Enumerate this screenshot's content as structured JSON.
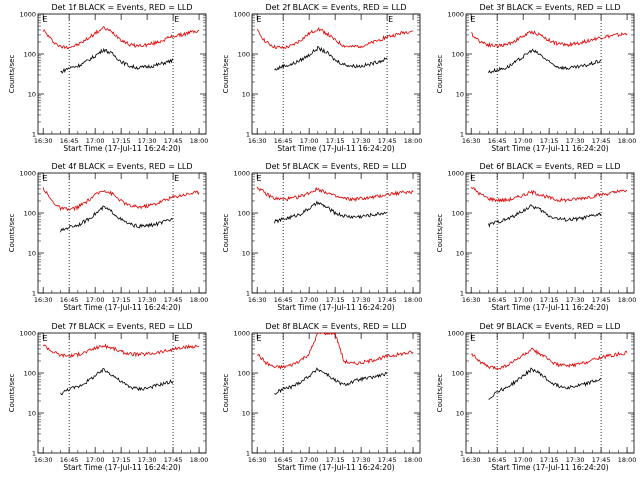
{
  "chart_data": {
    "type": "line",
    "y_scale": "log",
    "ylim": [
      1,
      1000
    ],
    "y_ticks": [
      "1",
      "10",
      "100",
      "1000"
    ],
    "x_ticks": [
      "16:30",
      "16:45",
      "17:00",
      "17:15",
      "17:30",
      "17:45",
      "18:00"
    ],
    "grid": false,
    "colors": {
      "events": "#000000",
      "lld": "#e00000"
    },
    "panels": [
      {
        "title": "Det 1f  BLACK = Events, RED = LLD",
        "xlabel": "Start Time (17-Jul-11 16:24:20)",
        "ylabel": "Counts/sec",
        "markers": [
          "E",
          "E"
        ],
        "series": [
          {
            "x": [
              "16:30",
              "16:35",
              "16:40",
              "16:45",
              "16:50",
              "16:55",
              "17:00",
              "17:05",
              "17:10",
              "17:15",
              "17:20",
              "17:25",
              "17:30",
              "17:35",
              "17:40",
              "17:45",
              "17:50",
              "17:55",
              "18:00"
            ],
            "values": [
              400,
              220,
              150,
              150,
              170,
              230,
              330,
              450,
              350,
              230,
              170,
              160,
              170,
              190,
              230,
              280,
              300,
              350,
              380
            ]
          },
          {
            "x": [
              "16:40",
              "16:45",
              "16:50",
              "16:55",
              "17:00",
              "17:05",
              "17:10",
              "17:15",
              "17:20",
              "17:25",
              "17:30",
              "17:35",
              "17:40",
              "17:45"
            ],
            "values": [
              35,
              45,
              50,
              65,
              90,
              130,
              100,
              65,
              50,
              45,
              48,
              52,
              60,
              70
            ]
          }
        ]
      },
      {
        "title": "Det 2f  BLACK = Events, RED = LLD",
        "xlabel": "Start Time (17-Jul-11 16:24:20)",
        "ylabel": "Counts/sec",
        "markers": [
          "E",
          "E"
        ],
        "series": [
          {
            "x": [
              "16:30",
              "16:35",
              "16:40",
              "16:45",
              "16:50",
              "16:55",
              "17:00",
              "17:05",
              "17:10",
              "17:15",
              "17:20",
              "17:25",
              "17:30",
              "17:35",
              "17:40",
              "17:45",
              "17:50",
              "17:55",
              "18:00"
            ],
            "values": [
              380,
              200,
              150,
              140,
              160,
              220,
              320,
              430,
              330,
              220,
              160,
              150,
              160,
              180,
              220,
              270,
              300,
              350,
              380
            ]
          },
          {
            "x": [
              "16:40",
              "16:45",
              "16:50",
              "16:55",
              "17:00",
              "17:05",
              "17:10",
              "17:15",
              "17:20",
              "17:25",
              "17:30",
              "17:35",
              "17:40",
              "17:45"
            ],
            "values": [
              40,
              50,
              55,
              70,
              95,
              140,
              110,
              70,
              55,
              50,
              50,
              55,
              65,
              75
            ]
          }
        ]
      },
      {
        "title": "Det 3f  BLACK = Events, RED = LLD",
        "xlabel": "Start Time (17-Jul-11 16:24:20)",
        "ylabel": "Counts/sec",
        "markers": [
          "E"
        ],
        "series": [
          {
            "x": [
              "16:30",
              "16:35",
              "16:40",
              "16:45",
              "16:50",
              "16:55",
              "17:00",
              "17:05",
              "17:10",
              "17:15",
              "17:20",
              "17:25",
              "17:30",
              "17:35",
              "17:40",
              "17:45",
              "17:50",
              "17:55",
              "18:00"
            ],
            "values": [
              320,
              210,
              170,
              160,
              170,
              210,
              280,
              360,
              300,
              220,
              180,
              170,
              180,
              200,
              230,
              260,
              280,
              300,
              320
            ]
          },
          {
            "x": [
              "16:40",
              "16:45",
              "16:50",
              "16:55",
              "17:00",
              "17:05",
              "17:10",
              "17:15",
              "17:20",
              "17:25",
              "17:30",
              "17:35",
              "17:40",
              "17:45"
            ],
            "values": [
              35,
              40,
              45,
              60,
              85,
              125,
              95,
              62,
              48,
              44,
              46,
              50,
              58,
              68
            ]
          }
        ]
      },
      {
        "title": "Det 4f  BLACK = Events, RED = LLD",
        "xlabel": "Start Time (17-Jul-11 16:24:20)",
        "ylabel": "Counts/sec",
        "markers": [
          "E",
          "E"
        ],
        "series": [
          {
            "x": [
              "16:30",
              "16:35",
              "16:40",
              "16:45",
              "16:50",
              "16:55",
              "17:00",
              "17:05",
              "17:10",
              "17:15",
              "17:20",
              "17:25",
              "17:30",
              "17:35",
              "17:40",
              "17:45",
              "17:50",
              "17:55",
              "18:00"
            ],
            "values": [
              420,
              200,
              130,
              120,
              140,
              190,
              280,
              380,
              300,
              200,
              150,
              140,
              150,
              170,
              210,
              250,
              280,
              310,
              330
            ]
          },
          {
            "x": [
              "16:40",
              "16:45",
              "16:50",
              "16:55",
              "17:00",
              "17:05",
              "17:10",
              "17:15",
              "17:20",
              "17:25",
              "17:30",
              "17:35",
              "17:40",
              "17:45"
            ],
            "values": [
              35,
              45,
              50,
              65,
              95,
              140,
              105,
              68,
              52,
              46,
              48,
              52,
              60,
              72
            ]
          }
        ]
      },
      {
        "title": "Det 5f  BLACK = Events, RED = LLD",
        "xlabel": "Start Time (17-Jul-11 16:24:20)",
        "ylabel": "Counts/sec",
        "markers": [
          "E"
        ],
        "series": [
          {
            "x": [
              "16:30",
              "16:35",
              "16:40",
              "16:45",
              "16:50",
              "16:55",
              "17:00",
              "17:05",
              "17:10",
              "17:15",
              "17:20",
              "17:25",
              "17:30",
              "17:35",
              "17:40",
              "17:45",
              "17:50",
              "17:55",
              "18:00"
            ],
            "values": [
              450,
              300,
              230,
              220,
              230,
              260,
              320,
              400,
              330,
              260,
              230,
              220,
              230,
              240,
              260,
              290,
              310,
              330,
              340
            ]
          },
          {
            "x": [
              "16:40",
              "16:45",
              "16:50",
              "16:55",
              "17:00",
              "17:05",
              "17:10",
              "17:15",
              "17:20",
              "17:25",
              "17:30",
              "17:35",
              "17:40",
              "17:45"
            ],
            "values": [
              60,
              70,
              80,
              95,
              130,
              180,
              140,
              100,
              85,
              80,
              82,
              88,
              95,
              105
            ]
          }
        ]
      },
      {
        "title": "Det 6f  BLACK = Events, RED = LLD",
        "xlabel": "Start Time (17-Jul-11 16:24:20)",
        "ylabel": "Counts/sec",
        "markers": [
          "E"
        ],
        "series": [
          {
            "x": [
              "16:30",
              "16:35",
              "16:40",
              "16:45",
              "16:50",
              "16:55",
              "17:00",
              "17:05",
              "17:10",
              "17:15",
              "17:20",
              "17:25",
              "17:30",
              "17:35",
              "17:40",
              "17:45",
              "17:50",
              "17:55",
              "18:00"
            ],
            "values": [
              450,
              300,
              230,
              210,
              210,
              230,
              280,
              330,
              290,
              240,
              210,
              210,
              220,
              240,
              260,
              290,
              310,
              340,
              360
            ]
          },
          {
            "x": [
              "16:40",
              "16:45",
              "16:50",
              "16:55",
              "17:00",
              "17:05",
              "17:10",
              "17:15",
              "17:20",
              "17:25",
              "17:30",
              "17:35",
              "17:40",
              "17:45"
            ],
            "values": [
              50,
              60,
              68,
              85,
              115,
              150,
              120,
              85,
              72,
              68,
              70,
              75,
              85,
              95
            ]
          }
        ]
      },
      {
        "title": "Det 7f  BLACK = Events, RED = LLD",
        "xlabel": "Start Time (17-Jul-11 16:24:20)",
        "ylabel": "Counts/sec",
        "markers": [
          "E",
          "E"
        ],
        "series": [
          {
            "x": [
              "16:30",
              "16:35",
              "16:40",
              "16:45",
              "16:50",
              "16:55",
              "17:00",
              "17:05",
              "17:10",
              "17:15",
              "17:20",
              "17:25",
              "17:30",
              "17:35",
              "17:40",
              "17:45",
              "17:50",
              "17:55",
              "18:00"
            ],
            "values": [
              520,
              350,
              280,
              270,
              290,
              340,
              420,
              480,
              420,
              340,
              300,
              290,
              300,
              320,
              350,
              390,
              420,
              450,
              470
            ]
          },
          {
            "x": [
              "16:40",
              "16:45",
              "16:50",
              "16:55",
              "17:00",
              "17:05",
              "17:10",
              "17:15",
              "17:20",
              "17:25",
              "17:30",
              "17:35",
              "17:40",
              "17:45"
            ],
            "values": [
              30,
              40,
              45,
              60,
              85,
              120,
              90,
              60,
              45,
              40,
              42,
              48,
              55,
              62
            ]
          }
        ]
      },
      {
        "title": "Det 8f  BLACK = Events, RED = LLD",
        "xlabel": "Start Time (17-Jul-11 16:24:20)",
        "ylabel": "Counts/sec",
        "markers": [
          "E"
        ],
        "series": [
          {
            "x": [
              "16:30",
              "16:35",
              "16:40",
              "16:45",
              "16:50",
              "16:55",
              "17:00",
              "17:05",
              "17:10",
              "17:15",
              "17:20",
              "17:25",
              "17:30",
              "17:35",
              "17:40",
              "17:45",
              "17:50",
              "17:55",
              "18:00"
            ],
            "values": [
              300,
              180,
              140,
              140,
              160,
              210,
              300,
              1000,
              1000,
              1000,
              200,
              170,
              180,
              200,
              230,
              260,
              280,
              310,
              330
            ]
          },
          {
            "x": [
              "16:40",
              "16:45",
              "16:50",
              "16:55",
              "17:00",
              "17:05",
              "17:10",
              "17:15",
              "17:20",
              "17:25",
              "17:30",
              "17:35",
              "17:40",
              "17:45"
            ],
            "values": [
              30,
              40,
              45,
              60,
              85,
              125,
              95,
              65,
              50,
              60,
              70,
              75,
              85,
              95
            ]
          }
        ]
      },
      {
        "title": "Det 9f  BLACK = Events, RED = LLD",
        "xlabel": "Start Time (17-Jul-11 16:24:20)",
        "ylabel": "Counts/sec",
        "markers": [
          "E"
        ],
        "series": [
          {
            "x": [
              "16:30",
              "16:35",
              "16:40",
              "16:45",
              "16:50",
              "16:55",
              "17:00",
              "17:05",
              "17:10",
              "17:15",
              "17:20",
              "17:25",
              "17:30",
              "17:35",
              "17:40",
              "17:45",
              "17:50",
              "17:55",
              "18:00"
            ],
            "values": [
              320,
              190,
              140,
              130,
              150,
              200,
              280,
              380,
              300,
              210,
              160,
              150,
              160,
              180,
              210,
              250,
              270,
              300,
              320
            ]
          },
          {
            "x": [
              "16:40",
              "16:45",
              "16:50",
              "16:55",
              "17:00",
              "17:05",
              "17:10",
              "17:15",
              "17:20",
              "17:25",
              "17:30",
              "17:35",
              "17:40",
              "17:45"
            ],
            "values": [
              22,
              35,
              42,
              58,
              85,
              125,
              95,
              62,
              48,
              44,
              46,
              52,
              60,
              70
            ]
          }
        ]
      }
    ]
  }
}
